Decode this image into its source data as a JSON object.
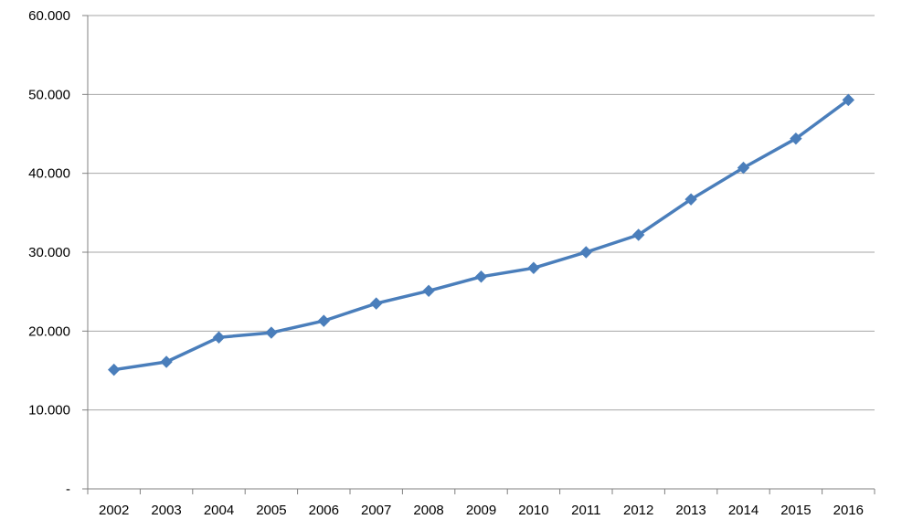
{
  "chart_data": {
    "type": "line",
    "categories": [
      "2002",
      "2003",
      "2004",
      "2005",
      "2006",
      "2007",
      "2008",
      "2009",
      "2010",
      "2011",
      "2012",
      "2013",
      "2014",
      "2015",
      "2016"
    ],
    "series": [
      {
        "values": [
          15100,
          16100,
          19200,
          19800,
          21300,
          23500,
          25100,
          26900,
          28000,
          30000,
          32200,
          36700,
          40700,
          44400,
          49300
        ],
        "color": "#4a7ebb",
        "marker": "diamond"
      }
    ],
    "ylim": [
      0,
      60000
    ],
    "y_ticks": [
      {
        "value": 0,
        "label": "-"
      },
      {
        "value": 10000,
        "label": "10.000"
      },
      {
        "value": 20000,
        "label": "20.000"
      },
      {
        "value": 30000,
        "label": "30.000"
      },
      {
        "value": 40000,
        "label": "40.000"
      },
      {
        "value": 50000,
        "label": "50.000"
      },
      {
        "value": 60000,
        "label": "60.000"
      }
    ],
    "title": "",
    "xlabel": "",
    "ylabel": "",
    "grid": true,
    "gridline_color": "#a6a6a6",
    "axis_color": "#808080"
  }
}
